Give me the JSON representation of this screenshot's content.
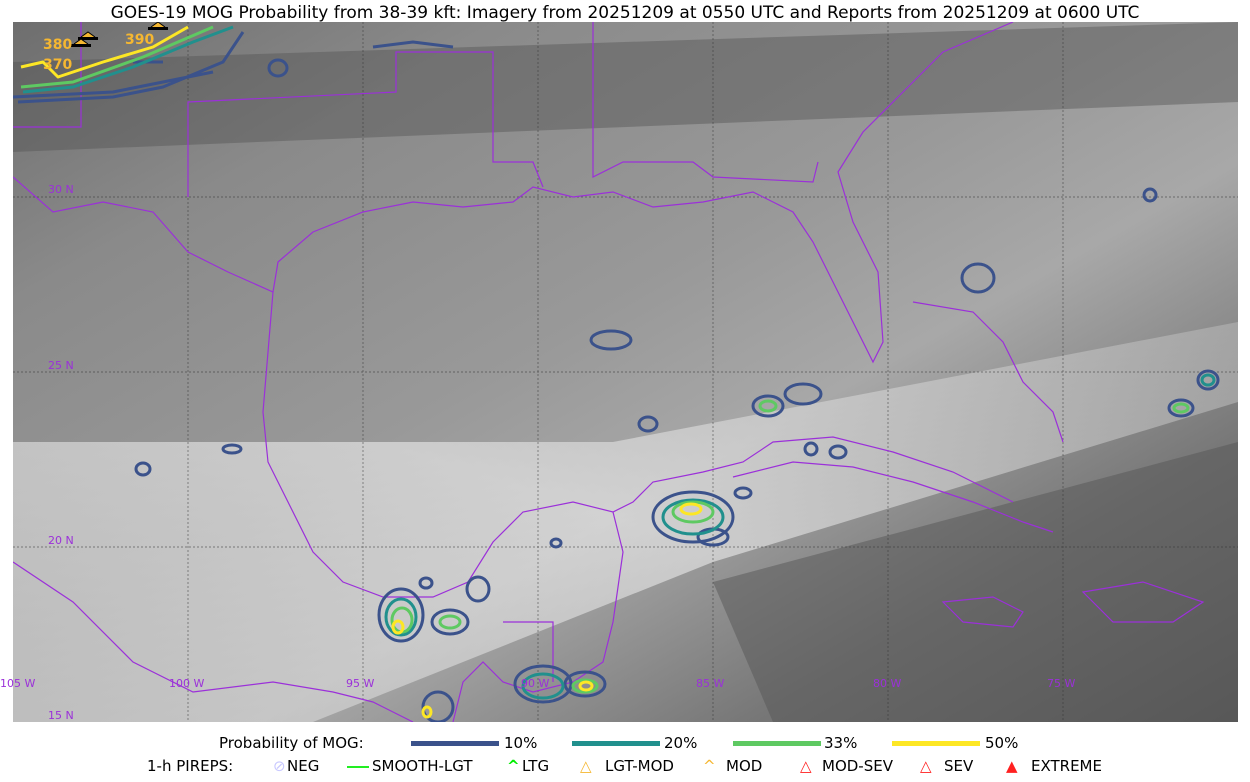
{
  "title": "GOES-19 MOG Probability from 38-39 kft: Imagery from 20251209 at 0550 UTC and Reports from 20251209 at 0600 UTC",
  "map": {
    "lon_labels": [
      "105 W",
      "100 W",
      "95 W",
      "90 W",
      "85 W",
      "80 W",
      "75 W"
    ],
    "lat_labels": [
      "30 N",
      "25 N",
      "20 N",
      "15 N"
    ],
    "border_color": "#9b30d9",
    "report_labels": [
      "390",
      "380",
      "370"
    ]
  },
  "legend": {
    "probability_title": "Probability of MOG:",
    "probability_levels": [
      {
        "label": "10%",
        "color": "#3b528b"
      },
      {
        "label": "20%",
        "color": "#21908d"
      },
      {
        "label": "33%",
        "color": "#5ec962"
      },
      {
        "label": "50%",
        "color": "#fde725"
      }
    ],
    "pireps_title": "1-h PIREPS:",
    "pireps": [
      {
        "label": "NEG",
        "icon": "neg-icon",
        "color": "#c8c8ff"
      },
      {
        "label": "SMOOTH-LGT",
        "icon": "smooth-lgt-icon",
        "color": "#22ee22"
      },
      {
        "label": "LTG",
        "icon": "ltg-icon",
        "color": "#00ee00"
      },
      {
        "label": "LGT-MOD",
        "icon": "lgt-mod-icon",
        "color": "#f5b731"
      },
      {
        "label": "MOD",
        "icon": "mod-icon",
        "color": "#f5b731"
      },
      {
        "label": "MOD-SEV",
        "icon": "mod-sev-icon",
        "color": "#ff2020"
      },
      {
        "label": "SEV",
        "icon": "sev-icon",
        "color": "#ff2020"
      },
      {
        "label": "EXTREME",
        "icon": "extreme-icon",
        "color": "#ff2020"
      }
    ]
  }
}
